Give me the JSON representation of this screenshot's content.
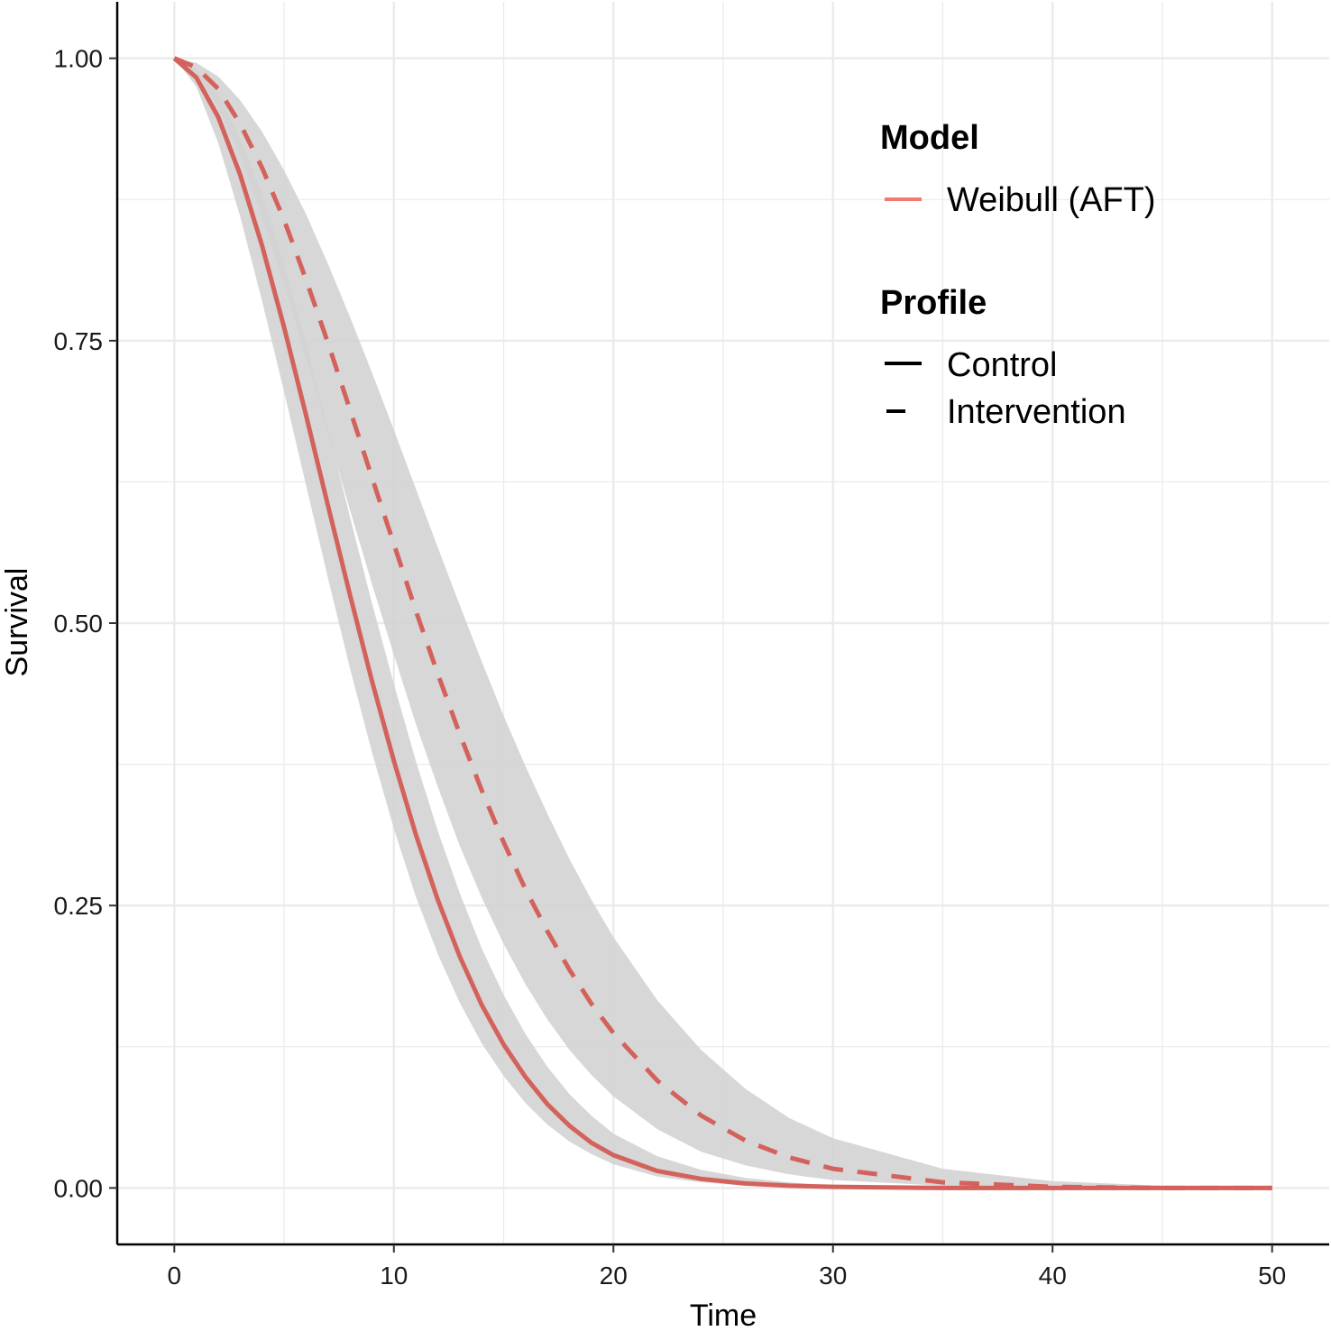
{
  "chart_data": {
    "type": "line",
    "title": "",
    "xlabel": "Time",
    "ylabel": "Survival",
    "xlim": [
      -2.6,
      52.6
    ],
    "ylim": [
      -0.05,
      1.05
    ],
    "x_ticks": [
      0,
      10,
      20,
      30,
      40,
      50
    ],
    "x_tick_labels": [
      "0",
      "10",
      "20",
      "30",
      "40",
      "50"
    ],
    "y_ticks": [
      0,
      0.25,
      0.5,
      0.75,
      1.0
    ],
    "y_tick_labels": [
      "0.00",
      "0.25",
      "0.50",
      "0.75",
      "1.00"
    ],
    "grid": true,
    "legend_position": "top-right",
    "colors": {
      "line": "#d4625c",
      "band": "#d3d3d3",
      "grid": "#ebebeb",
      "axis": "#000000",
      "legend_model_key": "#f07a72"
    },
    "legend": {
      "model_title": "Model",
      "model_items": [
        {
          "label": "Weibull (AFT)",
          "color": "#f07a72"
        }
      ],
      "profile_title": "Profile",
      "profile_items": [
        {
          "label": "Control",
          "linetype": "solid"
        },
        {
          "label": "Intervention",
          "linetype": "dashed"
        }
      ]
    },
    "series": [
      {
        "model": "Weibull (AFT)",
        "profile": "Control",
        "linetype": "solid",
        "x": [
          0,
          1,
          2,
          3,
          4,
          5,
          6,
          7,
          8,
          9,
          10,
          11,
          12,
          13,
          14,
          15,
          16,
          17,
          18,
          19,
          20,
          22,
          24,
          26,
          28,
          30,
          35,
          40,
          45,
          50
        ],
        "y": [
          1.0,
          0.983,
          0.948,
          0.897,
          0.834,
          0.762,
          0.684,
          0.604,
          0.525,
          0.449,
          0.378,
          0.313,
          0.255,
          0.205,
          0.162,
          0.127,
          0.098,
          0.074,
          0.055,
          0.04,
          0.029,
          0.015,
          0.008,
          0.004,
          0.002,
          0.001,
          0.0,
          0.0,
          0.0,
          0.0
        ],
        "lower": [
          1.0,
          0.975,
          0.925,
          0.86,
          0.785,
          0.705,
          0.622,
          0.54,
          0.46,
          0.386,
          0.318,
          0.258,
          0.207,
          0.164,
          0.128,
          0.099,
          0.075,
          0.056,
          0.041,
          0.03,
          0.021,
          0.01,
          0.005,
          0.002,
          0.001,
          0.0,
          0.0,
          0.0,
          0.0,
          0.0
        ],
        "upper": [
          1.0,
          0.99,
          0.968,
          0.93,
          0.88,
          0.818,
          0.748,
          0.672,
          0.594,
          0.518,
          0.446,
          0.378,
          0.316,
          0.261,
          0.212,
          0.171,
          0.136,
          0.107,
          0.083,
          0.064,
          0.048,
          0.028,
          0.016,
          0.009,
          0.005,
          0.002,
          0.0,
          0.0,
          0.0,
          0.0
        ]
      },
      {
        "model": "Weibull (AFT)",
        "profile": "Intervention",
        "linetype": "dashed",
        "x": [
          0,
          1,
          2,
          3,
          4,
          5,
          6,
          7,
          8,
          9,
          10,
          11,
          12,
          13,
          14,
          15,
          16,
          17,
          18,
          19,
          20,
          22,
          24,
          26,
          28,
          30,
          35,
          40,
          45,
          50
        ],
        "y": [
          1.0,
          0.992,
          0.973,
          0.942,
          0.903,
          0.857,
          0.804,
          0.748,
          0.689,
          0.629,
          0.57,
          0.511,
          0.455,
          0.402,
          0.352,
          0.306,
          0.264,
          0.227,
          0.193,
          0.163,
          0.137,
          0.095,
          0.064,
          0.042,
          0.027,
          0.017,
          0.005,
          0.001,
          0.0,
          0.0
        ],
        "lower": [
          1.0,
          0.987,
          0.958,
          0.913,
          0.86,
          0.8,
          0.735,
          0.668,
          0.6,
          0.535,
          0.472,
          0.411,
          0.355,
          0.303,
          0.257,
          0.216,
          0.18,
          0.149,
          0.122,
          0.1,
          0.081,
          0.052,
          0.032,
          0.02,
          0.012,
          0.007,
          0.002,
          0.0,
          0.0,
          0.0
        ],
        "upper": [
          1.0,
          0.996,
          0.984,
          0.963,
          0.935,
          0.901,
          0.862,
          0.818,
          0.771,
          0.722,
          0.671,
          0.619,
          0.567,
          0.516,
          0.466,
          0.418,
          0.373,
          0.331,
          0.291,
          0.255,
          0.222,
          0.166,
          0.122,
          0.088,
          0.062,
          0.044,
          0.017,
          0.006,
          0.002,
          0.001
        ]
      }
    ]
  }
}
